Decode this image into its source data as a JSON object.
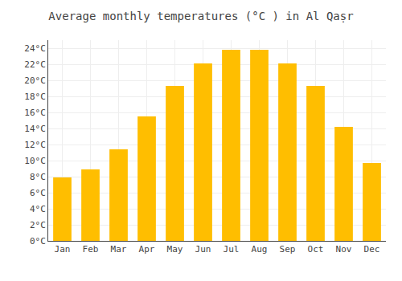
{
  "chart_data": {
    "type": "bar",
    "title": "Average monthly temperatures (°C ) in Al Qaṣr",
    "categories": [
      "Jan",
      "Feb",
      "Mar",
      "Apr",
      "May",
      "Jun",
      "Jul",
      "Aug",
      "Sep",
      "Oct",
      "Nov",
      "Dec"
    ],
    "values": [
      7.9,
      8.9,
      11.4,
      15.5,
      19.3,
      22.1,
      23.8,
      23.8,
      22.1,
      19.3,
      14.2,
      9.7
    ],
    "color": "#FFBE00",
    "ylim": [
      0,
      25
    ],
    "yticks": [
      {
        "value": 0,
        "label": "0°C"
      },
      {
        "value": 2,
        "label": "2°C"
      },
      {
        "value": 4,
        "label": "4°C"
      },
      {
        "value": 6,
        "label": "6°C"
      },
      {
        "value": 8,
        "label": "8°C"
      },
      {
        "value": 10,
        "label": "10°C"
      },
      {
        "value": 12,
        "label": "12°C"
      },
      {
        "value": 14,
        "label": "14°C"
      },
      {
        "value": 16,
        "label": "16°C"
      },
      {
        "value": 18,
        "label": "18°C"
      },
      {
        "value": 20,
        "label": "20°C"
      },
      {
        "value": 22,
        "label": "22°C"
      },
      {
        "value": 24,
        "label": "24°C"
      }
    ],
    "grid": true
  }
}
